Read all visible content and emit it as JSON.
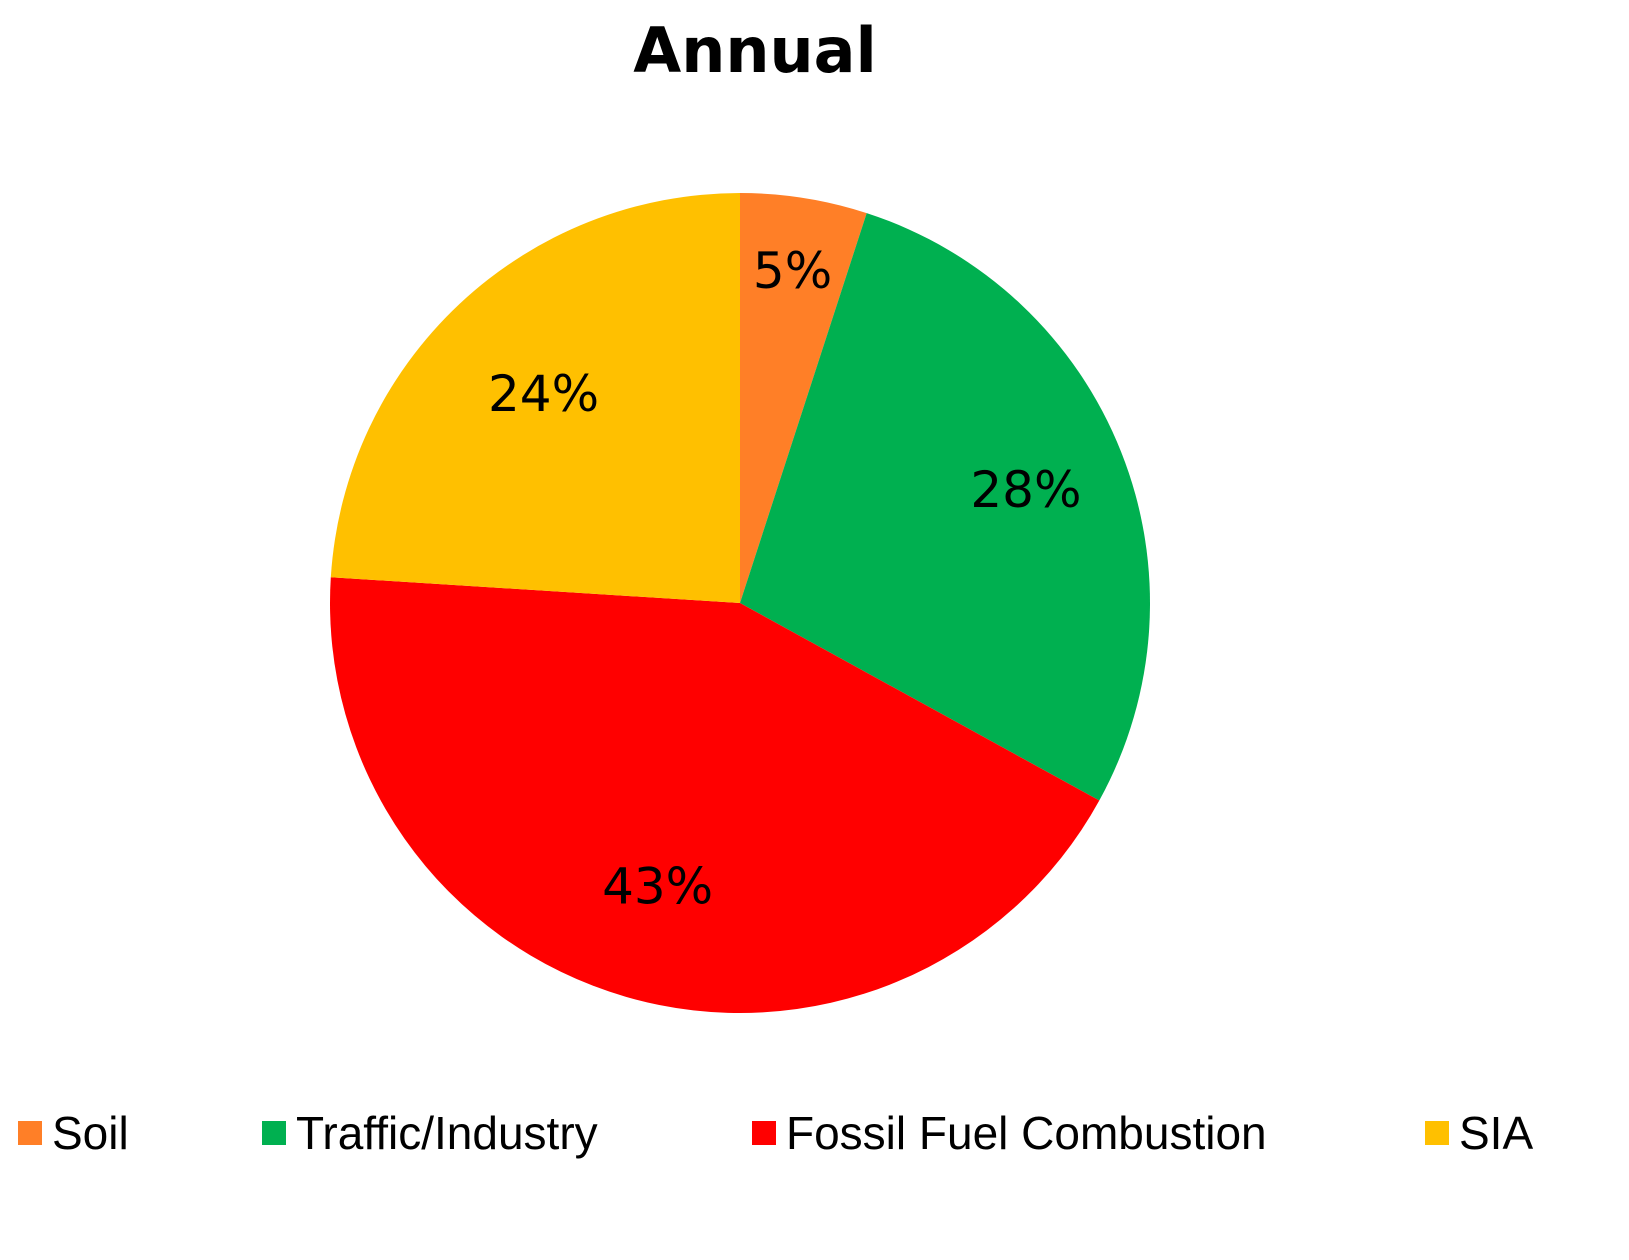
{
  "chart_data": {
    "type": "pie",
    "title": "Annual",
    "categories": [
      "Soil",
      "Traffic/Industry",
      "Fossil Fuel Combustion",
      "SIA"
    ],
    "values": [
      5,
      28,
      43,
      24
    ],
    "labels": [
      "5%",
      "28%",
      "43%",
      "24%"
    ],
    "colors": [
      "#FF7F27",
      "#00B050",
      "#FF0000",
      "#FFC000"
    ],
    "legend_position": "bottom"
  }
}
